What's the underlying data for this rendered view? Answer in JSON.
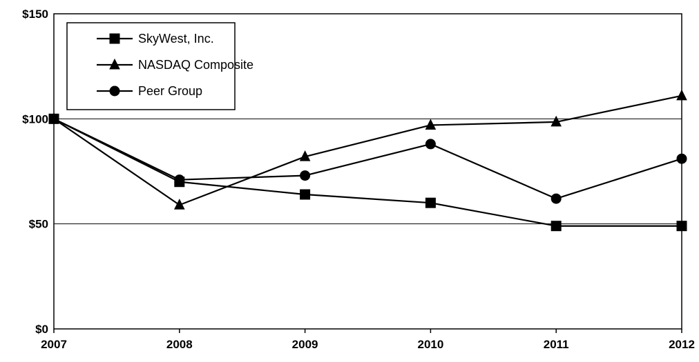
{
  "chart_data": {
    "type": "line",
    "title": "",
    "xlabel": "",
    "ylabel": "",
    "categories": [
      "2007",
      "2008",
      "2009",
      "2010",
      "2011",
      "2012"
    ],
    "ylim": [
      0,
      150
    ],
    "yticks": [
      0,
      50,
      100,
      150
    ],
    "ytick_labels": [
      "$0",
      "$50",
      "$100",
      "$150"
    ],
    "grid": true,
    "legend_position": "top-left",
    "series": [
      {
        "name": "SkyWest, Inc.",
        "marker": "square",
        "values": [
          100,
          70,
          64,
          60,
          49,
          49
        ]
      },
      {
        "name": "NASDAQ Composite",
        "marker": "triangle",
        "values": [
          100,
          59,
          82,
          97,
          98.5,
          111
        ]
      },
      {
        "name": "Peer Group",
        "marker": "circle",
        "values": [
          100,
          71,
          73,
          88,
          62,
          81
        ]
      }
    ]
  }
}
